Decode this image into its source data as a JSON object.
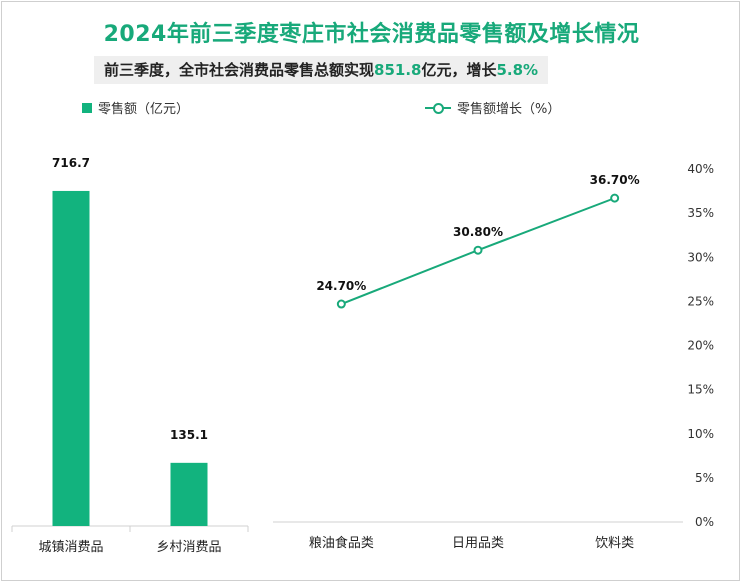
{
  "title": "2024年前三季度枣庄市社会消费品零售额及增长情况",
  "subtitle": {
    "prefix": "前三季度，全市社会消费品零售总额实现",
    "amount": "851.8",
    "mid": "亿元，增长",
    "growth": "5.8%"
  },
  "colors": {
    "accent": "#18a97a",
    "bar": "#12b37e"
  },
  "chart_data": [
    {
      "type": "bar",
      "legend": "零售额（亿元）",
      "categories": [
        "城镇消费品",
        "乡村消费品"
      ],
      "values": [
        716.7,
        135.1
      ],
      "value_labels": [
        "716.7",
        "135.1"
      ],
      "ylim": [
        0,
        800
      ],
      "grid": false
    },
    {
      "type": "line",
      "legend": "零售额增长（%）",
      "categories": [
        "粮油食品类",
        "日用品类",
        "饮料类"
      ],
      "values": [
        24.7,
        30.8,
        36.7
      ],
      "value_labels": [
        "24.70%",
        "30.80%",
        "36.70%"
      ],
      "ylim": [
        0,
        40
      ],
      "yticks": [
        "0%",
        "5%",
        "10%",
        "15%",
        "20%",
        "25%",
        "30%",
        "35%",
        "40%"
      ],
      "grid": false
    }
  ]
}
